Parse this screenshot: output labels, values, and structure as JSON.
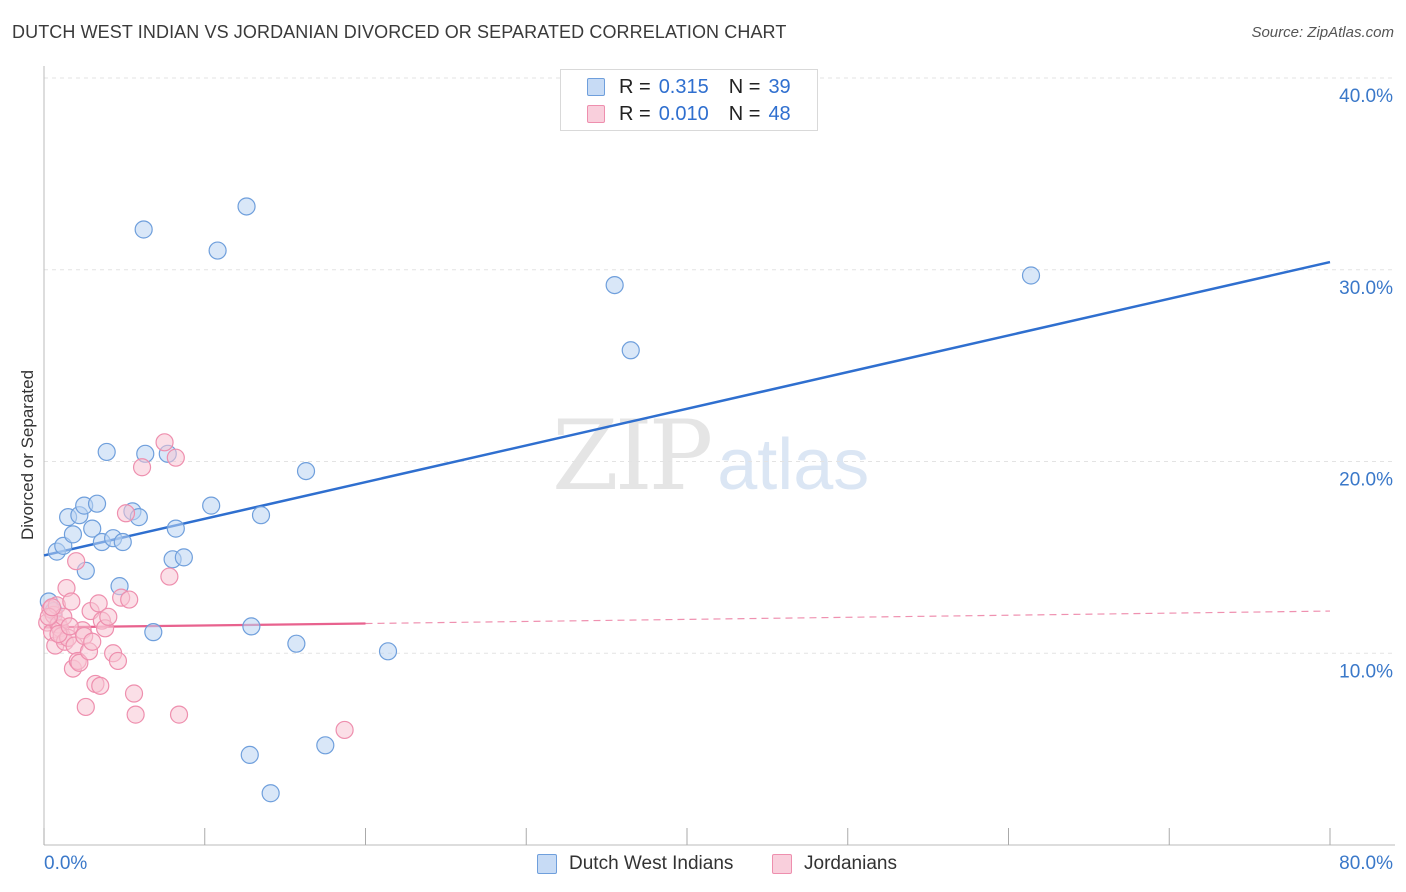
{
  "header": {
    "title": "DUTCH WEST INDIAN VS JORDANIAN DIVORCED OR SEPARATED CORRELATION CHART",
    "source": "Source: ZipAtlas.com"
  },
  "legend": {
    "rows": [
      {
        "r_label": "R =",
        "r_value": "0.315",
        "n_label": "N =",
        "n_value": "39",
        "color": "#9ec2ee"
      },
      {
        "r_label": "R =",
        "r_value": "0.010",
        "n_label": "N =",
        "n_value": "48",
        "color": "#f5b3c8"
      }
    ]
  },
  "bottom_legend": {
    "series1": "Dutch West Indians",
    "series2": "Jordanians"
  },
  "watermark": {
    "zip": "ZIP",
    "atlas": "atlas"
  },
  "colors": {
    "blue": "#2f6fcf",
    "blue_fill": "#b9d3f3",
    "pink": "#e8628e",
    "pink_fill": "#f7c4d4",
    "grid": "#e3e3e3",
    "tick_label": "#3a78c9"
  },
  "chart_data": {
    "type": "scatter",
    "xlim": [
      0,
      80
    ],
    "ylim": [
      0,
      40
    ],
    "ylabel": "Divorced or Separated",
    "x_tick_labels": [
      "0.0%",
      "80.0%"
    ],
    "y_ticks": [
      10,
      20,
      30,
      40
    ],
    "y_tick_labels": [
      "10.0%",
      "20.0%",
      "30.0%",
      "40.0%"
    ],
    "grid": true,
    "series": [
      {
        "name": "Dutch West Indians",
        "points": [
          [
            0.3,
            12.7
          ],
          [
            0.8,
            15.3
          ],
          [
            1.2,
            15.6
          ],
          [
            1.5,
            17.1
          ],
          [
            1.8,
            16.2
          ],
          [
            2.2,
            17.2
          ],
          [
            2.5,
            17.7
          ],
          [
            2.6,
            14.3
          ],
          [
            3.0,
            16.5
          ],
          [
            3.3,
            17.8
          ],
          [
            3.6,
            15.8
          ],
          [
            3.9,
            20.5
          ],
          [
            4.3,
            16.0
          ],
          [
            4.7,
            13.5
          ],
          [
            4.9,
            15.8
          ],
          [
            5.5,
            17.4
          ],
          [
            5.9,
            17.1
          ],
          [
            6.2,
            32.1
          ],
          [
            6.3,
            20.4
          ],
          [
            6.8,
            11.1
          ],
          [
            7.7,
            20.4
          ],
          [
            8.0,
            14.9
          ],
          [
            8.2,
            16.5
          ],
          [
            8.7,
            15.0
          ],
          [
            10.4,
            17.7
          ],
          [
            10.8,
            31.0
          ],
          [
            12.6,
            33.3
          ],
          [
            12.8,
            4.7
          ],
          [
            12.9,
            11.4
          ],
          [
            13.5,
            17.2
          ],
          [
            14.1,
            2.7
          ],
          [
            15.7,
            10.5
          ],
          [
            16.3,
            19.5
          ],
          [
            17.5,
            5.2
          ],
          [
            21.4,
            10.1
          ],
          [
            35.5,
            29.2
          ],
          [
            36.5,
            25.8
          ],
          [
            61.4,
            29.7
          ],
          [
            0.6,
            12.2
          ]
        ],
        "trend": {
          "x": [
            0,
            80
          ],
          "y": [
            15.1,
            30.4
          ]
        }
      },
      {
        "name": "Jordanians",
        "points": [
          [
            0.2,
            11.6
          ],
          [
            0.4,
            12.3
          ],
          [
            0.5,
            11.1
          ],
          [
            0.6,
            12.0
          ],
          [
            0.7,
            10.4
          ],
          [
            0.8,
            12.5
          ],
          [
            0.9,
            11.5
          ],
          [
            1.0,
            11.3
          ],
          [
            1.1,
            10.9
          ],
          [
            1.2,
            11.9
          ],
          [
            1.3,
            10.6
          ],
          [
            1.4,
            13.4
          ],
          [
            1.5,
            10.8
          ],
          [
            1.7,
            12.7
          ],
          [
            1.8,
            9.2
          ],
          [
            1.9,
            10.4
          ],
          [
            2.0,
            14.8
          ],
          [
            2.1,
            9.6
          ],
          [
            2.2,
            9.5
          ],
          [
            2.4,
            11.2
          ],
          [
            2.5,
            10.9
          ],
          [
            2.6,
            7.2
          ],
          [
            2.8,
            10.1
          ],
          [
            2.9,
            12.2
          ],
          [
            3.0,
            10.6
          ],
          [
            3.2,
            8.4
          ],
          [
            3.4,
            12.6
          ],
          [
            3.5,
            8.3
          ],
          [
            3.6,
            11.7
          ],
          [
            3.8,
            11.3
          ],
          [
            4.0,
            11.9
          ],
          [
            4.3,
            10.0
          ],
          [
            4.6,
            9.6
          ],
          [
            4.8,
            12.9
          ],
          [
            5.1,
            17.3
          ],
          [
            5.3,
            12.8
          ],
          [
            5.6,
            7.9
          ],
          [
            5.7,
            6.8
          ],
          [
            6.1,
            19.7
          ],
          [
            7.5,
            21.0
          ],
          [
            7.8,
            14.0
          ],
          [
            8.2,
            20.2
          ],
          [
            8.4,
            6.8
          ],
          [
            18.7,
            6.0
          ],
          [
            0.3,
            11.9
          ],
          [
            0.5,
            12.4
          ],
          [
            0.9,
            11.0
          ],
          [
            1.6,
            11.4
          ]
        ],
        "trend": {
          "x": [
            0,
            20
          ],
          "y": [
            11.35,
            11.55
          ]
        },
        "trend_extension": {
          "x": [
            20,
            80
          ],
          "y": [
            11.55,
            12.2
          ]
        }
      }
    ]
  }
}
